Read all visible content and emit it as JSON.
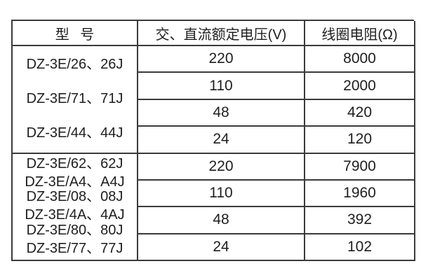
{
  "table": {
    "headers": {
      "model": "型 号",
      "voltage": "交、直流额定电压(V)",
      "resistance": "线圈电阻(Ω)"
    },
    "groups": [
      {
        "models": [
          "DZ-3E/26、26J",
          "DZ-3E/71、71J",
          "DZ-3E/44、44J"
        ],
        "rows": [
          {
            "voltage": "220",
            "resistance": "8000"
          },
          {
            "voltage": "110",
            "resistance": "2000"
          },
          {
            "voltage": "48",
            "resistance": "420"
          },
          {
            "voltage": "24",
            "resistance": "120"
          }
        ]
      },
      {
        "models": [
          "DZ-3E/62、62J",
          "DZ-3E/A4、A4J",
          "DZ-3E/08、08J",
          "DZ-3E/4A、4AJ",
          "DZ-3E/80、80J",
          "DZ-3E/77、77J"
        ],
        "rows": [
          {
            "voltage": "220",
            "resistance": "7900"
          },
          {
            "voltage": "110",
            "resistance": "1960"
          },
          {
            "voltage": "48",
            "resistance": "392"
          },
          {
            "voltage": "24",
            "resistance": "102"
          }
        ]
      }
    ],
    "colors": {
      "border": "#3a3a3a",
      "text": "#1e1e1e",
      "background": "#ffffff"
    }
  }
}
